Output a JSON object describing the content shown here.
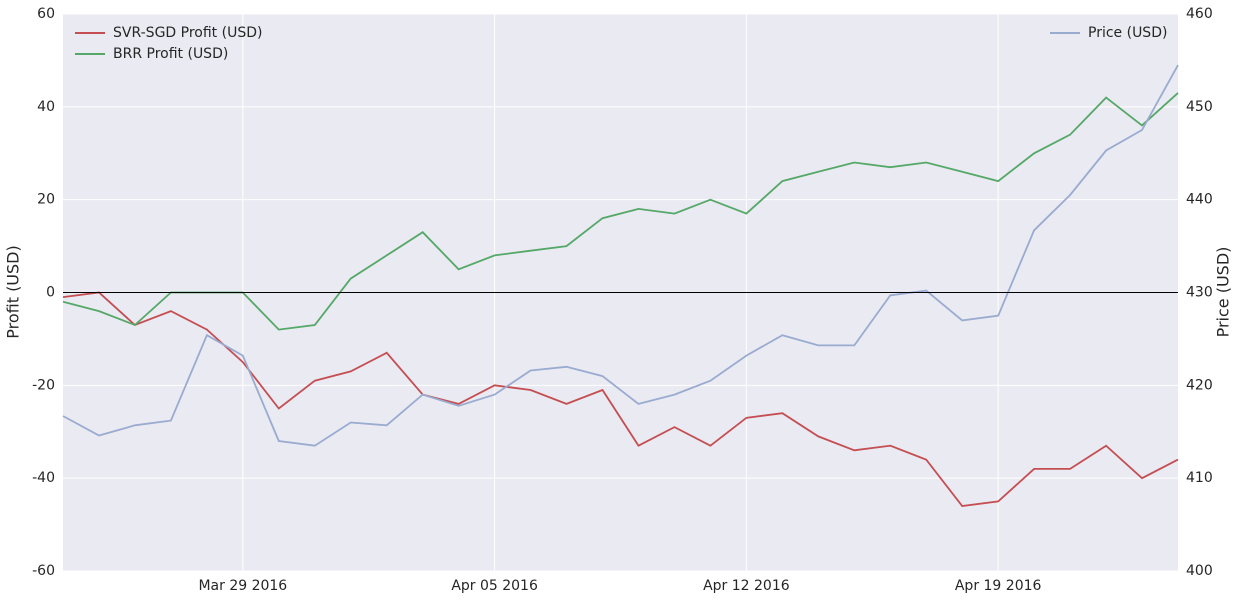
{
  "chart_data": {
    "type": "line",
    "y_label": "Profit (USD)",
    "y2_label": "Price (USD)",
    "x": [
      "2016-03-24",
      "2016-03-25",
      "2016-03-26",
      "2016-03-27",
      "2016-03-28",
      "2016-03-29",
      "2016-03-30",
      "2016-03-31",
      "2016-04-01",
      "2016-04-02",
      "2016-04-03",
      "2016-04-04",
      "2016-04-05",
      "2016-04-06",
      "2016-04-07",
      "2016-04-08",
      "2016-04-09",
      "2016-04-10",
      "2016-04-11",
      "2016-04-12",
      "2016-04-13",
      "2016-04-14",
      "2016-04-15",
      "2016-04-16",
      "2016-04-17",
      "2016-04-18",
      "2016-04-19",
      "2016-04-20",
      "2016-04-21",
      "2016-04-22",
      "2016-04-23",
      "2016-04-24"
    ],
    "series": [
      {
        "name": "SVR-SGD Profit (USD)",
        "color": "#c44e52",
        "axis": "y",
        "values": [
          -1,
          0,
          -7,
          -4,
          -8,
          -15,
          -25,
          -19,
          -17,
          -13,
          -22,
          -24,
          -20,
          -21,
          -24,
          -21,
          -33,
          -29,
          -33,
          -27,
          -26,
          -31,
          -34,
          -33,
          -36,
          -46,
          -45,
          -38,
          -38,
          -33,
          -40,
          -36
        ]
      },
      {
        "name": "BRR Profit (USD)",
        "color": "#55a868",
        "axis": "y",
        "values": [
          -2,
          -4,
          -7,
          0,
          0,
          0,
          -8,
          -7,
          3,
          8,
          13,
          5,
          8,
          9,
          10,
          16,
          18,
          17,
          20,
          17,
          24,
          26,
          28,
          27,
          28,
          26,
          24,
          30,
          34,
          42,
          36,
          43
        ]
      },
      {
        "name": "Price (USD)",
        "color": "#9aabd0",
        "axis": "y2",
        "values": [
          416.7,
          414.6,
          415.7,
          416.2,
          425.4,
          423.2,
          414,
          413.5,
          416,
          415.7,
          419,
          417.8,
          419,
          421.6,
          422,
          421,
          418,
          419,
          420.5,
          423.2,
          425.4,
          424.3,
          424.3,
          429.7,
          430.2,
          427,
          427.5,
          436.7,
          440.5,
          445.3,
          447.5,
          454.5
        ]
      }
    ],
    "xlim": [
      "2016-03-24",
      "2016-04-24"
    ],
    "xticks": [
      {
        "value": "2016-03-29",
        "label": "Mar 29 2016"
      },
      {
        "value": "2016-04-05",
        "label": "Apr 05 2016"
      },
      {
        "value": "2016-04-12",
        "label": "Apr 12 2016"
      },
      {
        "value": "2016-04-19",
        "label": "Apr 19 2016"
      }
    ],
    "ylim": [
      -60,
      60
    ],
    "yticks": [
      -60,
      -40,
      -20,
      0,
      20,
      40,
      60
    ],
    "y2lim": [
      400,
      460
    ],
    "y2ticks": [
      400,
      410,
      420,
      430,
      440,
      450,
      460
    ],
    "hlines": [
      0
    ],
    "hline_color": "#000000",
    "grid": true,
    "background": "#eaeaf2",
    "legend": {
      "y": "upper left",
      "y2": "upper right"
    }
  }
}
